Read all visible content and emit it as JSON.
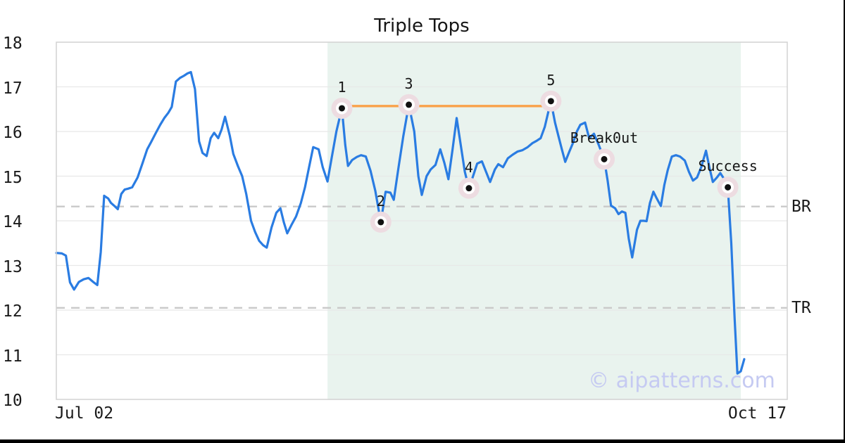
{
  "title": "Triple Tops",
  "watermark": "© aipatterns.com",
  "axes": {
    "y_ticks": [
      18,
      17,
      16,
      15,
      14,
      13,
      12,
      11,
      10
    ],
    "x_left": "Jul 02",
    "x_right": "Oct 17"
  },
  "colors": {
    "line": "#2a7ce2",
    "resistance": "#f9a24a",
    "region": "#e9f3ee",
    "grid": "#e8e8e8",
    "spine": "#d2d2d2",
    "dashed": "#c9c9c9",
    "halo": "#eddce1",
    "marker_ring": "#ffffff",
    "marker_dot": "#111111",
    "text": "#1a1a1a",
    "watermark": "#c5caf2",
    "frame": "#000000"
  },
  "chart_data": {
    "type": "line",
    "title": "Triple Tops",
    "xlabel": "",
    "ylabel": "",
    "x_unit": "days from Jul 02 (0) to Oct 17 (107)",
    "x_range_days": [
      0,
      107
    ],
    "x_tick_labels": [
      "Jul 02",
      "Oct 17"
    ],
    "ylim": [
      10,
      18
    ],
    "y_ticks": [
      10,
      11,
      12,
      13,
      14,
      15,
      16,
      17,
      18
    ],
    "grid": "horizontal gridlines only",
    "legend": "none",
    "pattern_region_days": [
      39.7,
      100.2
    ],
    "resistance_line": {
      "from_day": 41.8,
      "to_day": 72.4,
      "value": 16.57
    },
    "levels": [
      {
        "id": "br",
        "label": "BR",
        "value": 14.32
      },
      {
        "id": "tr",
        "label": "TR",
        "value": 12.05
      }
    ],
    "markers": [
      {
        "label": "1",
        "day": 41.8,
        "value": 16.52
      },
      {
        "label": "2",
        "day": 47.5,
        "value": 13.97
      },
      {
        "label": "3",
        "day": 51.6,
        "value": 16.6
      },
      {
        "label": "4",
        "day": 60.4,
        "value": 14.73
      },
      {
        "label": "5",
        "day": 72.4,
        "value": 16.68
      },
      {
        "label": "Break0ut",
        "day": 80.2,
        "value": 15.38
      },
      {
        "label": "Success",
        "day": 98.3,
        "value": 14.75
      }
    ],
    "series": [
      [
        0,
        13.28
      ],
      [
        0.8,
        13.27
      ],
      [
        1.4,
        13.22
      ],
      [
        2,
        12.62
      ],
      [
        2.6,
        12.46
      ],
      [
        3.3,
        12.63
      ],
      [
        4,
        12.69
      ],
      [
        4.7,
        12.72
      ],
      [
        5.4,
        12.63
      ],
      [
        6,
        12.56
      ],
      [
        6.5,
        13.3
      ],
      [
        7,
        14.56
      ],
      [
        7.6,
        14.5
      ],
      [
        8,
        14.4
      ],
      [
        8.6,
        14.32
      ],
      [
        9,
        14.26
      ],
      [
        9.5,
        14.6
      ],
      [
        10,
        14.7
      ],
      [
        10.5,
        14.72
      ],
      [
        11.1,
        14.75
      ],
      [
        11.9,
        14.97
      ],
      [
        12.6,
        15.28
      ],
      [
        13.3,
        15.6
      ],
      [
        13.9,
        15.77
      ],
      [
        14.5,
        15.95
      ],
      [
        15.2,
        16.15
      ],
      [
        15.8,
        16.3
      ],
      [
        16.4,
        16.42
      ],
      [
        16.9,
        16.55
      ],
      [
        17.5,
        17.12
      ],
      [
        18.1,
        17.2
      ],
      [
        18.7,
        17.25
      ],
      [
        19.2,
        17.3
      ],
      [
        19.7,
        17.33
      ],
      [
        20.3,
        16.95
      ],
      [
        20.9,
        15.78
      ],
      [
        21.4,
        15.52
      ],
      [
        22,
        15.45
      ],
      [
        22.6,
        15.85
      ],
      [
        23.1,
        15.97
      ],
      [
        23.7,
        15.85
      ],
      [
        24.2,
        16.05
      ],
      [
        24.7,
        16.33
      ],
      [
        25.4,
        15.9
      ],
      [
        25.9,
        15.5
      ],
      [
        26.6,
        15.22
      ],
      [
        27.2,
        15
      ],
      [
        27.8,
        14.6
      ],
      [
        28.5,
        14
      ],
      [
        29.1,
        13.75
      ],
      [
        29.7,
        13.55
      ],
      [
        30.3,
        13.45
      ],
      [
        30.8,
        13.4
      ],
      [
        31.5,
        13.85
      ],
      [
        32.2,
        14.18
      ],
      [
        32.8,
        14.28
      ],
      [
        33.3,
        13.97
      ],
      [
        33.8,
        13.72
      ],
      [
        34.4,
        13.9
      ],
      [
        35.1,
        14.1
      ],
      [
        35.8,
        14.4
      ],
      [
        36.4,
        14.75
      ],
      [
        37,
        15.2
      ],
      [
        37.6,
        15.65
      ],
      [
        38.4,
        15.6
      ],
      [
        39,
        15.2
      ],
      [
        39.7,
        14.88
      ],
      [
        40.3,
        15.4
      ],
      [
        41,
        16
      ],
      [
        41.8,
        16.52
      ],
      [
        42.3,
        15.7
      ],
      [
        42.7,
        15.23
      ],
      [
        43.3,
        15.36
      ],
      [
        44,
        15.43
      ],
      [
        44.6,
        15.47
      ],
      [
        45.3,
        15.44
      ],
      [
        46,
        15.12
      ],
      [
        46.7,
        14.67
      ],
      [
        47.5,
        13.97
      ],
      [
        48.2,
        14.65
      ],
      [
        48.9,
        14.63
      ],
      [
        49.4,
        14.47
      ],
      [
        50.1,
        15.2
      ],
      [
        50.8,
        15.9
      ],
      [
        51.6,
        16.6
      ],
      [
        52.4,
        16
      ],
      [
        53,
        15
      ],
      [
        53.5,
        14.58
      ],
      [
        54.2,
        15
      ],
      [
        54.8,
        15.15
      ],
      [
        55.5,
        15.25
      ],
      [
        56.2,
        15.6
      ],
      [
        56.8,
        15.3
      ],
      [
        57.4,
        14.93
      ],
      [
        58,
        15.6
      ],
      [
        58.6,
        16.3
      ],
      [
        59.2,
        15.7
      ],
      [
        59.8,
        15.1
      ],
      [
        60.4,
        14.73
      ],
      [
        61,
        15
      ],
      [
        61.6,
        15.28
      ],
      [
        62.3,
        15.33
      ],
      [
        62.9,
        15.1
      ],
      [
        63.5,
        14.87
      ],
      [
        64.2,
        15.15
      ],
      [
        64.7,
        15.27
      ],
      [
        65.4,
        15.2
      ],
      [
        66.1,
        15.4
      ],
      [
        66.8,
        15.48
      ],
      [
        67.5,
        15.55
      ],
      [
        68.2,
        15.58
      ],
      [
        69,
        15.65
      ],
      [
        69.7,
        15.74
      ],
      [
        70.3,
        15.79
      ],
      [
        70.9,
        15.85
      ],
      [
        71.5,
        16.1
      ],
      [
        72.4,
        16.68
      ],
      [
        73,
        16.2
      ],
      [
        73.5,
        15.9
      ],
      [
        74,
        15.6
      ],
      [
        74.5,
        15.32
      ],
      [
        75.1,
        15.55
      ],
      [
        75.7,
        15.77
      ],
      [
        76.2,
        16
      ],
      [
        76.7,
        16.15
      ],
      [
        77.4,
        16.2
      ],
      [
        78,
        15.85
      ],
      [
        78.7,
        15.95
      ],
      [
        79.4,
        15.7
      ],
      [
        80.2,
        15.38
      ],
      [
        80.7,
        14.9
      ],
      [
        81.2,
        14.34
      ],
      [
        81.8,
        14.28
      ],
      [
        82.3,
        14.15
      ],
      [
        82.8,
        14.21
      ],
      [
        83.3,
        14.18
      ],
      [
        83.8,
        13.6
      ],
      [
        84.3,
        13.18
      ],
      [
        85,
        13.8
      ],
      [
        85.5,
        14
      ],
      [
        86,
        14
      ],
      [
        86.4,
        13.99
      ],
      [
        86.9,
        14.4
      ],
      [
        87.4,
        14.65
      ],
      [
        87.9,
        14.5
      ],
      [
        88.5,
        14.33
      ],
      [
        89,
        14.8
      ],
      [
        89.5,
        15.13
      ],
      [
        90.1,
        15.44
      ],
      [
        90.7,
        15.47
      ],
      [
        91.3,
        15.44
      ],
      [
        92,
        15.35
      ],
      [
        92.6,
        15.1
      ],
      [
        93.2,
        14.9
      ],
      [
        93.8,
        14.97
      ],
      [
        94.4,
        15.2
      ],
      [
        95.1,
        15.57
      ],
      [
        95.6,
        15.2
      ],
      [
        96.1,
        14.87
      ],
      [
        96.7,
        14.97
      ],
      [
        97.2,
        15.07
      ],
      [
        97.7,
        14.95
      ],
      [
        98.3,
        14.75
      ],
      [
        98.8,
        13.5
      ],
      [
        99.3,
        11.8
      ],
      [
        99.7,
        10.58
      ],
      [
        100.2,
        10.63
      ],
      [
        100.7,
        10.9
      ]
    ]
  }
}
